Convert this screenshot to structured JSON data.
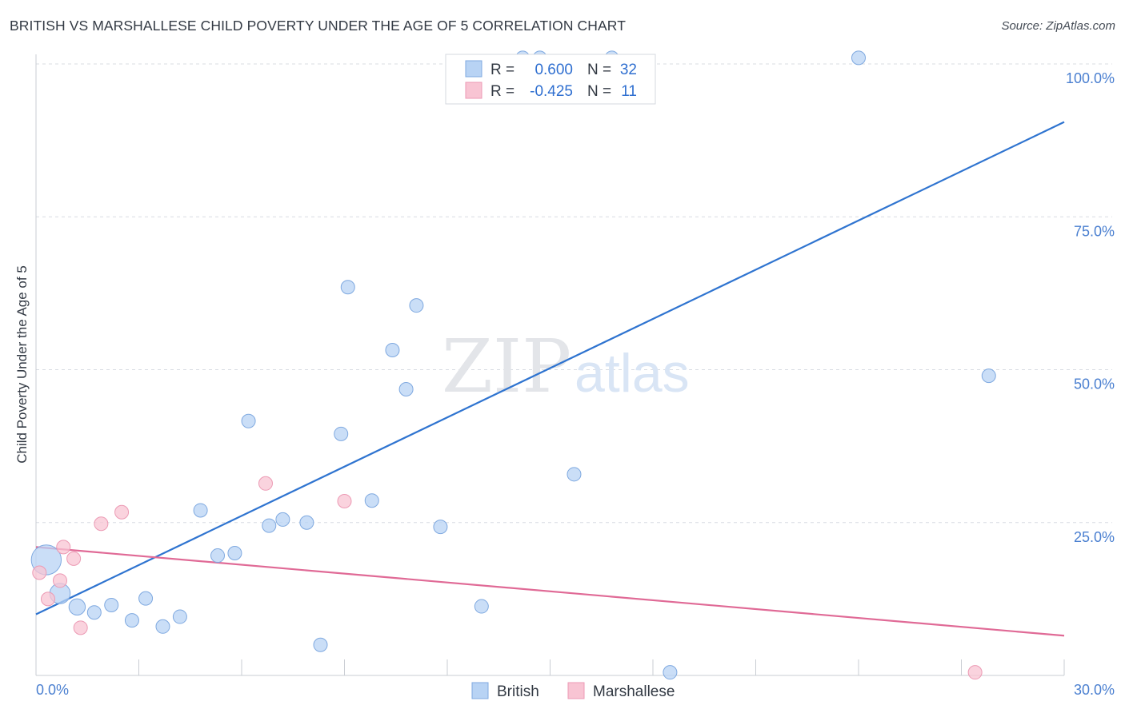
{
  "title": "BRITISH VS MARSHALLESE CHILD POVERTY UNDER THE AGE OF 5 CORRELATION CHART",
  "source": "Source: ZipAtlas.com",
  "watermark": {
    "zip": "ZIP",
    "atlas": "atlas"
  },
  "colors": {
    "british_fill": "#b8d3f4",
    "british_stroke": "#7fa9e0",
    "british_line": "#2f74d0",
    "marsh_fill": "#f8c4d3",
    "marsh_stroke": "#ec9ab4",
    "marsh_line": "#e06a96",
    "grid": "#d8dce2",
    "axis_text": "#4a7fd0"
  },
  "legend": {
    "rows": [
      {
        "r_label": "R =",
        "r_value": "0.600",
        "n_label": "N =",
        "n_value": "32"
      },
      {
        "r_label": "R =",
        "r_value": "-0.425",
        "n_label": "N =",
        "n_value": "11"
      }
    ]
  },
  "chart_data": {
    "type": "scatter",
    "ylabel": "Child Poverty Under the Age of 5",
    "xlim": [
      0,
      30
    ],
    "ylim": [
      0,
      100
    ],
    "x_tick_labels": [
      "0.0%",
      "30.0%"
    ],
    "y_tick_labels": [
      "25.0%",
      "50.0%",
      "75.0%",
      "100.0%"
    ],
    "y_ticks": [
      25,
      50,
      75,
      100
    ],
    "grid": true,
    "legend_position": "top-center",
    "series": [
      {
        "name": "British",
        "points": [
          [
            0.3,
            18.9,
            2.2
          ],
          [
            0.7,
            13.4,
            1.5
          ],
          [
            1.2,
            11.2,
            1.2
          ],
          [
            1.7,
            10.3,
            1.0
          ],
          [
            2.2,
            11.5,
            1.0
          ],
          [
            2.8,
            9.0,
            1.0
          ],
          [
            3.2,
            12.6,
            1.0
          ],
          [
            3.7,
            8.0,
            1.0
          ],
          [
            4.2,
            9.6,
            1.0
          ],
          [
            4.8,
            27.0,
            1.0
          ],
          [
            5.3,
            19.6,
            1.0
          ],
          [
            5.8,
            20.0,
            1.0
          ],
          [
            6.2,
            41.6,
            1.0
          ],
          [
            6.8,
            24.5,
            1.0
          ],
          [
            7.2,
            25.5,
            1.0
          ],
          [
            7.9,
            25.0,
            1.0
          ],
          [
            8.3,
            5.0,
            1.0
          ],
          [
            8.9,
            39.5,
            1.0
          ],
          [
            9.1,
            63.5,
            1.0
          ],
          [
            9.8,
            28.6,
            1.0
          ],
          [
            10.4,
            53.2,
            1.0
          ],
          [
            10.8,
            46.8,
            1.0
          ],
          [
            11.1,
            60.5,
            1.0
          ],
          [
            11.8,
            24.3,
            1.0
          ],
          [
            13.0,
            11.3,
            1.0
          ],
          [
            14.2,
            101.0,
            1.0
          ],
          [
            14.7,
            101.0,
            1.0
          ],
          [
            15.7,
            32.9,
            1.0
          ],
          [
            16.8,
            101.0,
            1.0
          ],
          [
            18.5,
            0.5,
            1.0
          ],
          [
            24.0,
            101.0,
            1.0
          ],
          [
            27.8,
            49.0,
            1.0
          ]
        ],
        "trend": [
          [
            0,
            10.0
          ],
          [
            30,
            90.5
          ]
        ]
      },
      {
        "name": "Marshallese",
        "points": [
          [
            0.1,
            16.8
          ],
          [
            0.35,
            12.5
          ],
          [
            0.7,
            15.5
          ],
          [
            0.8,
            21.0
          ],
          [
            1.1,
            19.1
          ],
          [
            1.3,
            7.8
          ],
          [
            1.9,
            24.8
          ],
          [
            2.5,
            26.7
          ],
          [
            6.7,
            31.4
          ],
          [
            9.0,
            28.5
          ],
          [
            27.4,
            0.5
          ]
        ],
        "trend": [
          [
            0,
            21.0
          ],
          [
            30,
            6.5
          ]
        ]
      }
    ]
  },
  "bottom_legend": {
    "british": "British",
    "marshallese": "Marshallese"
  }
}
